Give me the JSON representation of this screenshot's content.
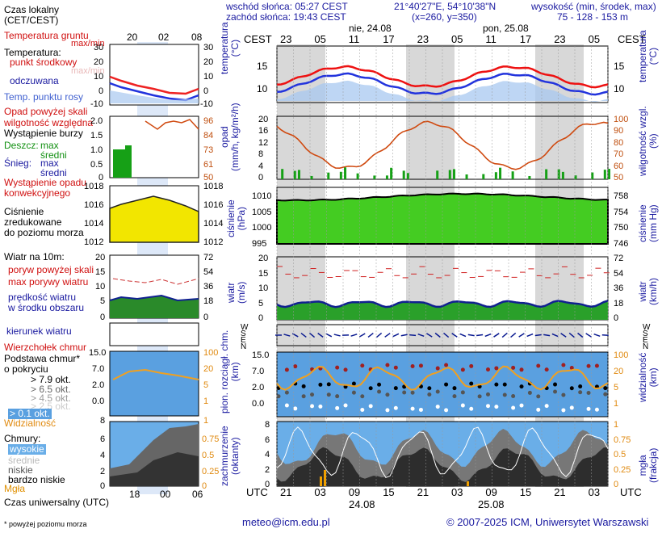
{
  "header": {
    "sunrise": "wschód słońca: 05:27 CEST",
    "sunset": "zachód słońca: 19:43 CEST",
    "coords": "21°40'27\"E, 54°10'38\"N",
    "grid": "(x=260, y=350)",
    "height_title": "wysokość (min, środek, max)",
    "height_values": "75 - 128 - 153 m"
  },
  "legend": {
    "local_time": "Czas lokalny\n(CET/CEST)",
    "ground_temp": "Temperatura gruntu",
    "max_min": "max/min",
    "temperature": "Temperatura:",
    "midpoint": "punkt środkowy",
    "max_min_faded": "max/min",
    "perceived": "odczuwana",
    "dew_point": "Temp. punktu rosy",
    "precip_over_scale": "Opad powyżej skali",
    "humidity": "wilgotność względna",
    "thunder": "Wystąpienie burzy",
    "rain_label": "Deszcz:",
    "max": "max",
    "mean": "średni",
    "snow_label": "Śnieg:",
    "snow_max": "max",
    "snow_mean": "średni",
    "convective": "Wystąpienie opadu\nkonwekcyjnego",
    "pressure": "Ciśnienie\nzredukowane\ndo poziomu morza",
    "wind_at": "Wiatr na 10m:",
    "gust_over": "poryw powyżej skali",
    "max_gust": "max porywy wiatru",
    "wind_speed": "prędkość wiatru\nw środku obszaru",
    "wind_dir": "kierunek wiatru",
    "cloud_top": "Wierzchołek chmur",
    "cloud_base": "Podstawa chmur*\no pokryciu",
    "c79": "> 7.9 okt.",
    "c65": "> 6.5 okt.",
    "c45": "> 4.5 okt.",
    "c25": "> 2.5 okt.",
    "c01": "> 0.1 okt.",
    "visibility": "Widzialność",
    "clouds": "Chmury:",
    "high": "wysokie",
    "mid": "średnie",
    "low": "niskie",
    "very_low": "bardzo niskie",
    "fog": "Mgła",
    "utc": "Czas uniwersalny (UTC)",
    "footnote": "* powyżej poziomu morza"
  },
  "left_top_ticks": [
    "20",
    "02",
    "08"
  ],
  "left_bottom_ticks": [
    "18",
    "00",
    "06"
  ],
  "left_axes": {
    "temp": [
      "30",
      "20",
      "10",
      "0",
      "-10"
    ],
    "temp_r": [
      "30",
      "20",
      "10",
      "0",
      "-10"
    ],
    "precip": [
      "2.0",
      "1.5",
      "1.0",
      "0.5",
      "0"
    ],
    "hum": [
      "96",
      "84",
      "73",
      "61",
      "50"
    ],
    "press": [
      "1018",
      "1016",
      "1014",
      "1012"
    ],
    "press_r": [
      "1018",
      "1016",
      "1014",
      "1012"
    ],
    "wind": [
      "20",
      "15",
      "10",
      "5",
      "0"
    ],
    "wind_r": [
      "72",
      "54",
      "36",
      "18",
      "0"
    ],
    "cloud": [
      "15.0",
      "7.0",
      "2.0",
      "0.0"
    ],
    "cloud_r": [
      "100",
      "20",
      "5",
      "1"
    ],
    "vis8": "8",
    "vis1": "1",
    "okt": [
      "8",
      "6",
      "4",
      "2",
      "0"
    ],
    "frac": [
      "1",
      "0.75",
      "0.5",
      "0.25",
      "0"
    ]
  },
  "main": {
    "cest": "CEST",
    "dates_top": [
      "nie, 24.08",
      "pon, 25.08"
    ],
    "hours_top": [
      "23",
      "05",
      "11",
      "17",
      "23",
      "05",
      "11",
      "17",
      "23",
      "05"
    ],
    "utc": "UTC",
    "hours_bottom": [
      "21",
      "03",
      "09",
      "15",
      "21",
      "03",
      "09",
      "15",
      "21",
      "03"
    ],
    "dates_bottom": [
      "24.08",
      "25.08"
    ],
    "temp_title": "temperatura\n(°C)",
    "temp_title_r": "temperatura\n(°C)",
    "temp_ticks": [
      "15",
      "10"
    ],
    "precip_title": "opad\n(mm/h, kg/m²/h)",
    "hum_title_r": "wilgotność wzgl.\n(%)",
    "precip_ticks": [
      "20",
      "16",
      "12",
      "8",
      "4",
      "0"
    ],
    "hum_ticks": [
      "100",
      "90",
      "80",
      "70",
      "60",
      "50"
    ],
    "press_title": "ciśnienie\n(hPa)",
    "press_title_r": "ciśnienie\n(mm Hg)",
    "press_ticks": [
      "1010",
      "1005",
      "1000",
      "995"
    ],
    "press_ticks_r": [
      "758",
      "754",
      "750",
      "746"
    ],
    "wind_title": "wiatr\n(m/s)",
    "wind_title_r": "wiatr\n(km/h)",
    "wind_ticks": [
      "20",
      "15",
      "10",
      "5",
      "0"
    ],
    "wind_ticks_r": [
      "72",
      "54",
      "36",
      "18",
      "0"
    ],
    "dir_title": "W\nS\nE\nN",
    "cloud_title": "pion. rozciągł. chm.\n(km)",
    "cloud_title_r": "widzialność\n(km)",
    "cloud_ticks": [
      "15.0",
      "7.0",
      "2.0",
      "0.0"
    ],
    "cloud_ticks_r": [
      "100",
      "20",
      "5",
      "1"
    ],
    "cover_title": "zachmurzenie\n(oktanty)",
    "cover_title_r": "mgła\n(frakcja)",
    "cover_ticks": [
      "8",
      "6",
      "4",
      "2",
      "0"
    ],
    "cover_ticks_r": [
      "1",
      "0.75",
      "0.5",
      "0.25",
      "0"
    ]
  },
  "footer": {
    "email": "meteo@icm.edu.pl",
    "copyright": "© 2007-2025 ICM, Uniwersytet Warszawski"
  },
  "colors": {
    "night": "#d8d8d8",
    "temp": "#ee1111",
    "perceived": "#2233dd",
    "pressure_fill": "#f2e600",
    "wind_fill": "#1a8a1a",
    "sky": "#5aa0e0"
  }
}
